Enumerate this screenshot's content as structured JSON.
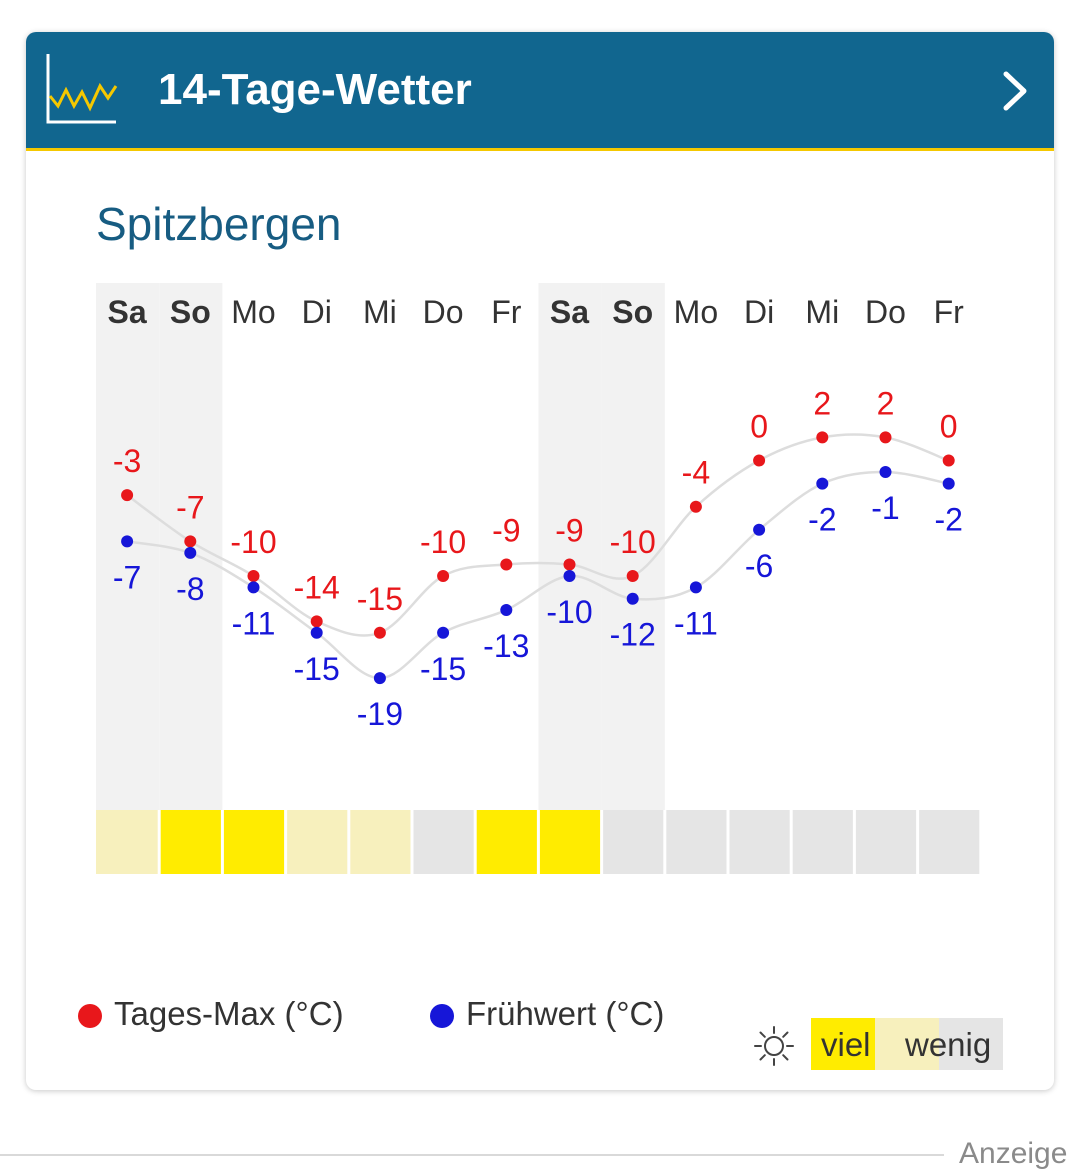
{
  "header": {
    "title": "14-Tage-Wetter",
    "icon": "line-chart-icon",
    "chevron_icon": "chevron-right-icon"
  },
  "location": "Spitzbergen",
  "chart_data": {
    "type": "line",
    "categories": [
      "Sa",
      "So",
      "Mo",
      "Di",
      "Mi",
      "Do",
      "Fr",
      "Sa",
      "So",
      "Mo",
      "Di",
      "Mi",
      "Do",
      "Fr"
    ],
    "weekend_days": [
      0,
      1,
      7,
      8
    ],
    "series": [
      {
        "name": "Tages-Max (°C)",
        "color": "#e8171b",
        "values": [
          -3,
          -7,
          -10,
          -14,
          -15,
          -10,
          -9,
          -9,
          -10,
          -4,
          0,
          2,
          2,
          0
        ]
      },
      {
        "name": "Frühwert (°C)",
        "color": "#1616d8",
        "values": [
          -7,
          -8,
          -11,
          -15,
          -19,
          -15,
          -13,
          -10,
          -12,
          -11,
          -6,
          -2,
          -1,
          -2
        ]
      }
    ],
    "sunshine": [
      "wenig-gelb",
      "viel",
      "viel",
      "wenig-gelb",
      "wenig-gelb",
      "wenig",
      "viel",
      "viel",
      "wenig",
      "wenig",
      "wenig",
      "wenig",
      "wenig",
      "wenig"
    ],
    "sunshine_colors": {
      "viel": "#ffec00",
      "wenig-gelb": "#f7f0bd",
      "wenig": "#e5e5e5"
    }
  },
  "legend": {
    "max_label": "Tages-Max (°C)",
    "early_label": "Frühwert (°C)",
    "sun_icon": "sun-icon",
    "viel": "viel",
    "wenig": "wenig"
  },
  "footer": {
    "label": "Anzeige"
  }
}
